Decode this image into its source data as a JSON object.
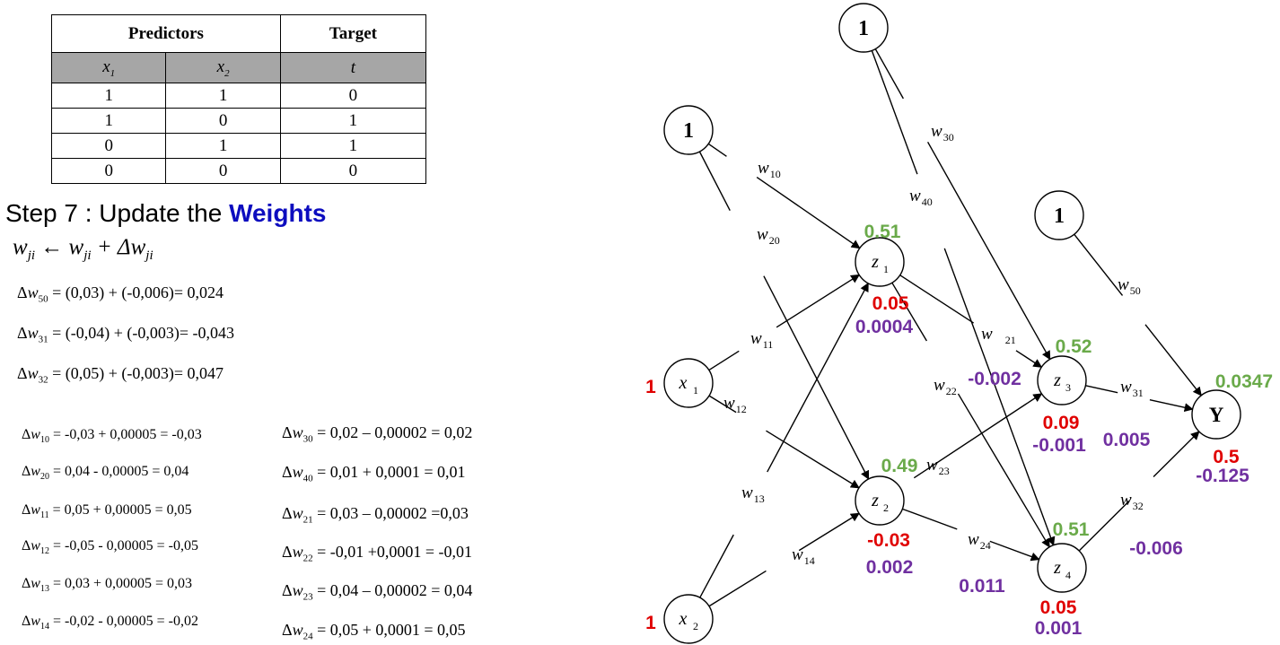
{
  "table": {
    "group_headers": [
      "Predictors",
      "Target"
    ],
    "sub_headers": [
      "x1",
      "x2",
      "t"
    ],
    "rows": [
      [
        "1",
        "1",
        "0"
      ],
      [
        "1",
        "0",
        "1"
      ],
      [
        "0",
        "1",
        "1"
      ],
      [
        "0",
        "0",
        "0"
      ]
    ]
  },
  "step": {
    "prefix": "Step 7 : Update the ",
    "keyword": "Weights",
    "keyword_color": "#0d0dbf"
  },
  "rule": "w ji ← w ji + Δw ji",
  "equations_top": [
    {
      "sub": "50",
      "rhs": " = (0,03) + (-0,006)= 0,024"
    },
    {
      "sub": "31",
      "rhs": " = (-0,04) + (-0,003)= -0,043"
    },
    {
      "sub": "32",
      "rhs": " = (0,05) + (-0,003)= 0,047"
    }
  ],
  "equations_left": [
    {
      "sub": "10",
      "rhs": " = -0,03 + 0,00005 = -0,03"
    },
    {
      "sub": "20",
      "rhs": " = 0,04 - 0,00005 = 0,04"
    },
    {
      "sub": "11",
      "rhs": " = 0,05 + 0,00005 = 0,05"
    },
    {
      "sub": "12",
      "rhs": " = -0,05 - 0,00005 = -0,05"
    },
    {
      "sub": "13",
      "rhs": " = 0,03 + 0,00005 = 0,03"
    },
    {
      "sub": "14",
      "rhs": " = -0,02 - 0,00005 = -0,02"
    }
  ],
  "equations_right": [
    {
      "sub": "30",
      "rhs": " = 0,02 – 0,00002 = 0,02"
    },
    {
      "sub": "40",
      "rhs": " = 0,01 + 0,0001 = 0,01"
    },
    {
      "sub": "21",
      "rhs": " = 0,03 – 0,00002 =0,03"
    },
    {
      "sub": "22",
      "rhs": " = -0,01 +0,0001 = -0,01"
    },
    {
      "sub": "23",
      "rhs": " = 0,04 – 0,00002 = 0,04"
    },
    {
      "sub": "24",
      "rhs": " = 0,05 + 0,0001 = 0,05"
    }
  ],
  "network": {
    "bias_label": "1",
    "inputs": [
      {
        "label": "x",
        "sub": "1",
        "value": "1"
      },
      {
        "label": "x",
        "sub": "2",
        "value": "1"
      }
    ],
    "hidden": [
      {
        "label": "z",
        "sub": "1",
        "green": "0.51",
        "red": "0.05",
        "purple": "0.0004"
      },
      {
        "label": "z",
        "sub": "2",
        "green": "0.49",
        "red": "-0.03",
        "purple": "0.002"
      },
      {
        "label": "z",
        "sub": "3",
        "green": "0.52",
        "red": "0.09",
        "purple": "-0.001"
      },
      {
        "label": "z",
        "sub": "4",
        "green": "0.51",
        "red": "0.05",
        "purple": "0.001"
      }
    ],
    "output": {
      "label": "Y",
      "green": "0.0347",
      "red": "0.5",
      "purple": "-0.125"
    },
    "weights": [
      "10",
      "20",
      "11",
      "12",
      "13",
      "14",
      "30",
      "40",
      "21",
      "22",
      "23",
      "24",
      "50",
      "31",
      "32"
    ],
    "edge_deltas": {
      "w22": "-0.002",
      "w31": "0.005",
      "w32": "-0.006",
      "w24": "0.011"
    },
    "colors": {
      "green": "#6aaa4a",
      "red": "#e00000",
      "purple": "#7030a0"
    }
  }
}
